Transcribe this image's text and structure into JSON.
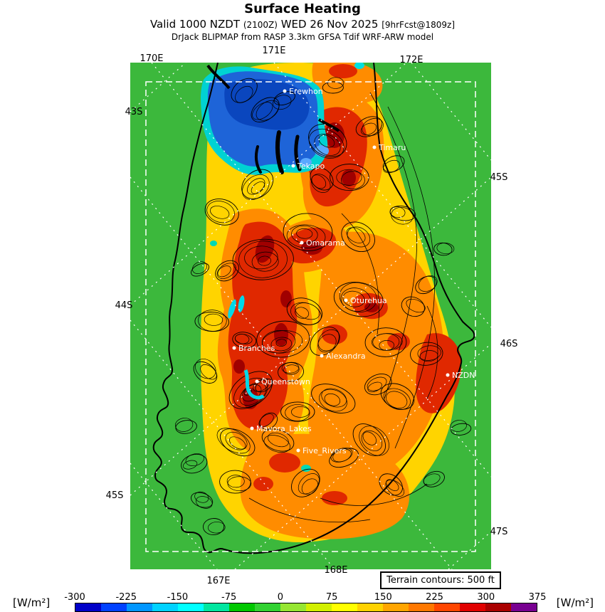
{
  "header": {
    "title": "Surface Heating",
    "valid_prefix": "Valid 1000 NZDT",
    "valid_time_z": "(2100Z)",
    "valid_date": "WED 26 Nov 2025",
    "forecast_tag": "[9hrFcst@1809z]",
    "model_line": "DrJack BLIPMAP from RASP 3.3km GFSA Tdif WRF-ARW model"
  },
  "map": {
    "terrain_note": "Terrain contours: 500 ft",
    "grid_labels": {
      "lon_top": [
        "170E",
        "171E",
        "172E"
      ],
      "lon_bottom": [
        "167E",
        "168E"
      ],
      "lat_left": [
        "43S",
        "44S",
        "45S"
      ],
      "lat_right": [
        "45S",
        "46S",
        "47S"
      ]
    },
    "places": [
      {
        "name": "Erewhon"
      },
      {
        "name": "Timaru"
      },
      {
        "name": "Tekapo"
      },
      {
        "name": "Omarama"
      },
      {
        "name": "Oturehua"
      },
      {
        "name": "Branches"
      },
      {
        "name": "Alexandra"
      },
      {
        "name": "NZDN"
      },
      {
        "name": "Queenstown"
      },
      {
        "name": "Mavora_Lakes"
      },
      {
        "name": "Five_Rivers"
      }
    ]
  },
  "colorbar": {
    "unit_left": "[W/m²]",
    "unit_right": "[W/m²]",
    "ticks": [
      "-300",
      "-225",
      "-150",
      "-75",
      "0",
      "75",
      "150",
      "225",
      "300",
      "375"
    ],
    "segment_colors": [
      "#0000c8",
      "#0041ff",
      "#0096ff",
      "#00d2ff",
      "#00ffff",
      "#00e6a0",
      "#00c800",
      "#32d232",
      "#96e632",
      "#d2f000",
      "#ffff00",
      "#ffd200",
      "#ffa500",
      "#ff7800",
      "#ff4600",
      "#e10000",
      "#aa0000",
      "#780091"
    ]
  },
  "field_colors": {
    "sea_low_heating": "#3cb83c",
    "moderate": "#ffd400",
    "high": "#ff8c00",
    "very_high": "#e02800",
    "extreme": "#a00000",
    "negative": "#1e64d8",
    "strong_negative": "#0a46be",
    "slightly_negative": "#00d2d2"
  }
}
